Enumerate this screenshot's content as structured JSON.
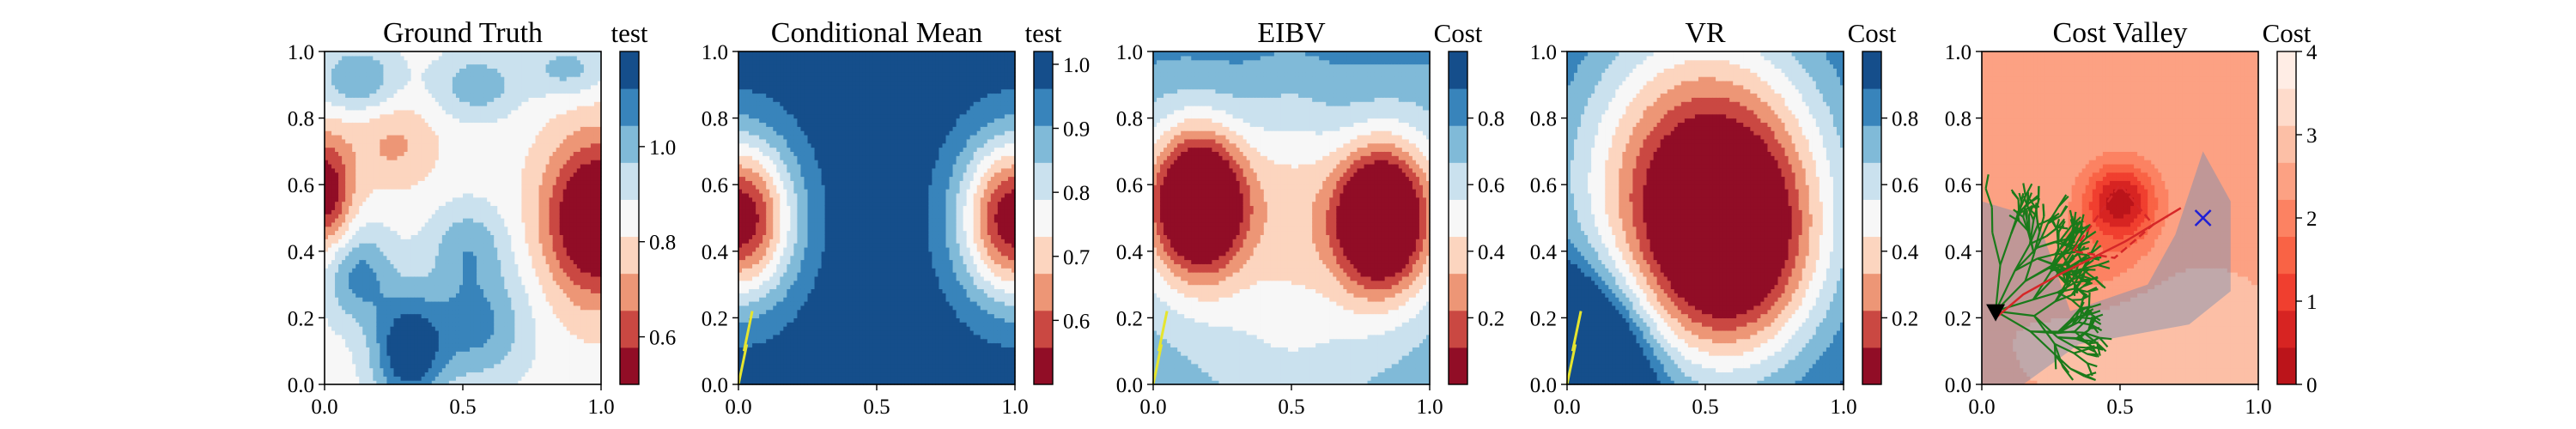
{
  "chart_data": [
    {
      "type": "heatmap",
      "title": "Ground Truth",
      "colorbar_title": "test",
      "colormap": "RdBu",
      "xlim": [
        0.0,
        1.0
      ],
      "ylim": [
        0.0,
        1.0
      ],
      "xticks": [
        0.0,
        0.5,
        1.0
      ],
      "yticks": [
        0.0,
        0.2,
        0.4,
        0.6,
        0.8,
        1.0
      ],
      "xtick_labels": [
        "0.0",
        "0.5",
        "1.0"
      ],
      "ytick_labels": [
        "0.0",
        "0.2",
        "0.4",
        "0.6",
        "0.8",
        "1.0"
      ],
      "colorbar_range": [
        0.5,
        1.2
      ],
      "colorbar_ticks": [
        0.6,
        0.8,
        1.0
      ],
      "colorbar_tick_labels": [
        "0.6",
        "0.8",
        "1.0"
      ],
      "field_model": {
        "base": 0.85,
        "bumps": [
          {
            "x": 0.98,
            "y": 0.5,
            "amp": -0.45,
            "sx": 0.13,
            "sy": 0.17
          },
          {
            "x": 0.0,
            "y": 0.58,
            "amp": -0.35,
            "sx": 0.07,
            "sy": 0.12
          },
          {
            "x": 0.25,
            "y": 0.72,
            "amp": -0.13,
            "sx": 0.11,
            "sy": 0.09
          },
          {
            "x": 0.3,
            "y": 0.1,
            "amp": 0.35,
            "sx": 0.09,
            "sy": 0.12
          },
          {
            "x": 0.55,
            "y": 0.18,
            "amp": 0.22,
            "sx": 0.13,
            "sy": 0.12
          },
          {
            "x": 0.12,
            "y": 0.33,
            "amp": 0.22,
            "sx": 0.09,
            "sy": 0.1
          },
          {
            "x": 0.52,
            "y": 0.42,
            "amp": 0.16,
            "sx": 0.1,
            "sy": 0.09
          },
          {
            "x": 0.12,
            "y": 0.92,
            "amp": 0.2,
            "sx": 0.1,
            "sy": 0.07
          },
          {
            "x": 0.55,
            "y": 0.9,
            "amp": 0.17,
            "sx": 0.11,
            "sy": 0.07
          },
          {
            "x": 0.88,
            "y": 0.95,
            "amp": 0.15,
            "sx": 0.1,
            "sy": 0.06
          }
        ]
      },
      "path": []
    },
    {
      "type": "heatmap",
      "title": "Conditional Mean",
      "colorbar_title": "test",
      "colormap": "RdBu",
      "xlim": [
        0.0,
        1.0
      ],
      "ylim": [
        0.0,
        1.0
      ],
      "xticks": [
        0.0,
        0.5,
        1.0
      ],
      "yticks": [
        0.0,
        0.2,
        0.4,
        0.6,
        0.8,
        1.0
      ],
      "xtick_labels": [
        "0.0",
        "0.5",
        "1.0"
      ],
      "ytick_labels": [
        "0.0",
        "0.2",
        "0.4",
        "0.6",
        "0.8",
        "1.0"
      ],
      "colorbar_range": [
        0.5,
        1.02
      ],
      "colorbar_ticks": [
        0.6,
        0.7,
        0.8,
        0.9,
        1.0
      ],
      "colorbar_tick_labels": [
        "0.6",
        "0.7",
        "0.8",
        "0.9",
        "1.0"
      ],
      "field_model": {
        "base": 1.0,
        "bumps": [
          {
            "x": 0.0,
            "y": 0.5,
            "amp": -0.5,
            "sx": 0.14,
            "sy": 0.17
          },
          {
            "x": 1.0,
            "y": 0.5,
            "amp": -0.5,
            "sx": 0.14,
            "sy": 0.17
          }
        ]
      },
      "path": [
        [
          0.0,
          0.0
        ],
        [
          0.03,
          0.12
        ],
        [
          0.02,
          0.1
        ],
        [
          0.05,
          0.22
        ]
      ],
      "path_color": "#e5e52f"
    },
    {
      "type": "heatmap",
      "title": "EIBV",
      "colorbar_title": "Cost",
      "colormap": "RdBu",
      "xlim": [
        0.0,
        1.0
      ],
      "ylim": [
        0.0,
        1.0
      ],
      "xticks": [
        0.0,
        0.5,
        1.0
      ],
      "yticks": [
        0.0,
        0.2,
        0.4,
        0.6,
        0.8,
        1.0
      ],
      "xtick_labels": [
        "0.0",
        "0.5",
        "1.0"
      ],
      "ytick_labels": [
        "0.0",
        "0.2",
        "0.4",
        "0.6",
        "0.8",
        "1.0"
      ],
      "colorbar_range": [
        0.0,
        1.0
      ],
      "colorbar_ticks": [
        0.2,
        0.4,
        0.6,
        0.8
      ],
      "colorbar_tick_labels": [
        "0.2",
        "0.4",
        "0.6",
        "0.8"
      ],
      "field_model": {
        "base": 0.9,
        "bumps": [
          {
            "x": 0.05,
            "y": 0.55,
            "amp": -0.3,
            "sx": 0.3,
            "sy": 0.3
          },
          {
            "x": 0.95,
            "y": 0.55,
            "amp": -0.3,
            "sx": 0.3,
            "sy": 0.3
          },
          {
            "x": 0.17,
            "y": 0.55,
            "amp": -0.95,
            "sx": 0.12,
            "sy": 0.15
          },
          {
            "x": 0.82,
            "y": 0.5,
            "amp": -0.95,
            "sx": 0.12,
            "sy": 0.15
          },
          {
            "x": 0.5,
            "y": 0.1,
            "amp": -0.25,
            "sx": 0.35,
            "sy": 0.3
          },
          {
            "x": 0.5,
            "y": 0.6,
            "amp": -0.2,
            "sx": 0.12,
            "sy": 0.25
          }
        ]
      },
      "path": [
        [
          0.0,
          0.0
        ],
        [
          0.03,
          0.12
        ],
        [
          0.02,
          0.1
        ],
        [
          0.05,
          0.22
        ]
      ],
      "path_color": "#e5e52f"
    },
    {
      "type": "heatmap",
      "title": "VR",
      "colorbar_title": "Cost",
      "colormap": "RdBu",
      "xlim": [
        0.0,
        1.0
      ],
      "ylim": [
        0.0,
        1.0
      ],
      "xticks": [
        0.0,
        0.5,
        1.0
      ],
      "yticks": [
        0.0,
        0.2,
        0.4,
        0.6,
        0.8,
        1.0
      ],
      "xtick_labels": [
        "0.0",
        "0.5",
        "1.0"
      ],
      "ytick_labels": [
        "0.0",
        "0.2",
        "0.4",
        "0.6",
        "0.8",
        "1.0"
      ],
      "colorbar_range": [
        0.0,
        1.0
      ],
      "colorbar_ticks": [
        0.2,
        0.4,
        0.6,
        0.8
      ],
      "colorbar_tick_labels": [
        "0.2",
        "0.4",
        "0.6",
        "0.8"
      ],
      "field_model": {
        "base": 1.0,
        "bumps": [
          {
            "x": 0.5,
            "y": 0.58,
            "amp": -1.0,
            "sx": 0.33,
            "sy": 0.36
          },
          {
            "x": 0.6,
            "y": 0.4,
            "amp": -0.5,
            "sx": 0.2,
            "sy": 0.22
          },
          {
            "x": 0.0,
            "y": 0.0,
            "amp": 1.0,
            "sx": 0.18,
            "sy": 0.2
          }
        ]
      },
      "path": [
        [
          0.0,
          0.0
        ],
        [
          0.03,
          0.12
        ],
        [
          0.02,
          0.1
        ],
        [
          0.05,
          0.22
        ]
      ],
      "path_color": "#e5e52f"
    },
    {
      "type": "heatmap",
      "title": "Cost Valley",
      "colorbar_title": "Cost",
      "colormap": "Reds",
      "xlim": [
        0.0,
        1.0
      ],
      "ylim": [
        0.0,
        1.0
      ],
      "xticks": [
        0.0,
        0.5,
        1.0
      ],
      "yticks": [
        0.0,
        0.2,
        0.4,
        0.6,
        0.8,
        1.0
      ],
      "xtick_labels": [
        "0.0",
        "0.5",
        "1.0"
      ],
      "ytick_labels": [
        "0.0",
        "0.2",
        "0.4",
        "0.6",
        "0.8",
        "1.0"
      ],
      "colorbar_range": [
        0.0,
        4.0
      ],
      "colorbar_ticks": [
        0,
        1,
        2,
        3,
        4
      ],
      "colorbar_tick_labels": [
        "0",
        "1",
        "2",
        "3",
        "4"
      ],
      "field_model": {
        "base": 2.6,
        "bumps": [
          {
            "x": 0.5,
            "y": 0.55,
            "amp": -2.4,
            "sx": 0.09,
            "sy": 0.08
          },
          {
            "x": 0.4,
            "y": 0.35,
            "amp": -0.6,
            "sx": 0.15,
            "sy": 0.1
          },
          {
            "x": 0.6,
            "y": 0.15,
            "amp": 0.5,
            "sx": 0.25,
            "sy": 0.12
          }
        ]
      },
      "tree_color": "#1a7a1a",
      "planned_path": [
        [
          0.05,
          0.2
        ],
        [
          0.15,
          0.27
        ],
        [
          0.28,
          0.33
        ],
        [
          0.4,
          0.38
        ],
        [
          0.52,
          0.43
        ],
        [
          0.62,
          0.48
        ],
        [
          0.72,
          0.53
        ]
      ],
      "planned_path_color": "#d62728",
      "start": [
        0.05,
        0.22
      ],
      "target": [
        0.8,
        0.5
      ],
      "target_color": "#1f1fd6",
      "boundary_polygon": [
        [
          0.33,
          0.4
        ],
        [
          0.5,
          0.6
        ],
        [
          0.62,
          0.48
        ],
        [
          0.48,
          0.38
        ]
      ],
      "boundary_color": "#d62728"
    }
  ]
}
